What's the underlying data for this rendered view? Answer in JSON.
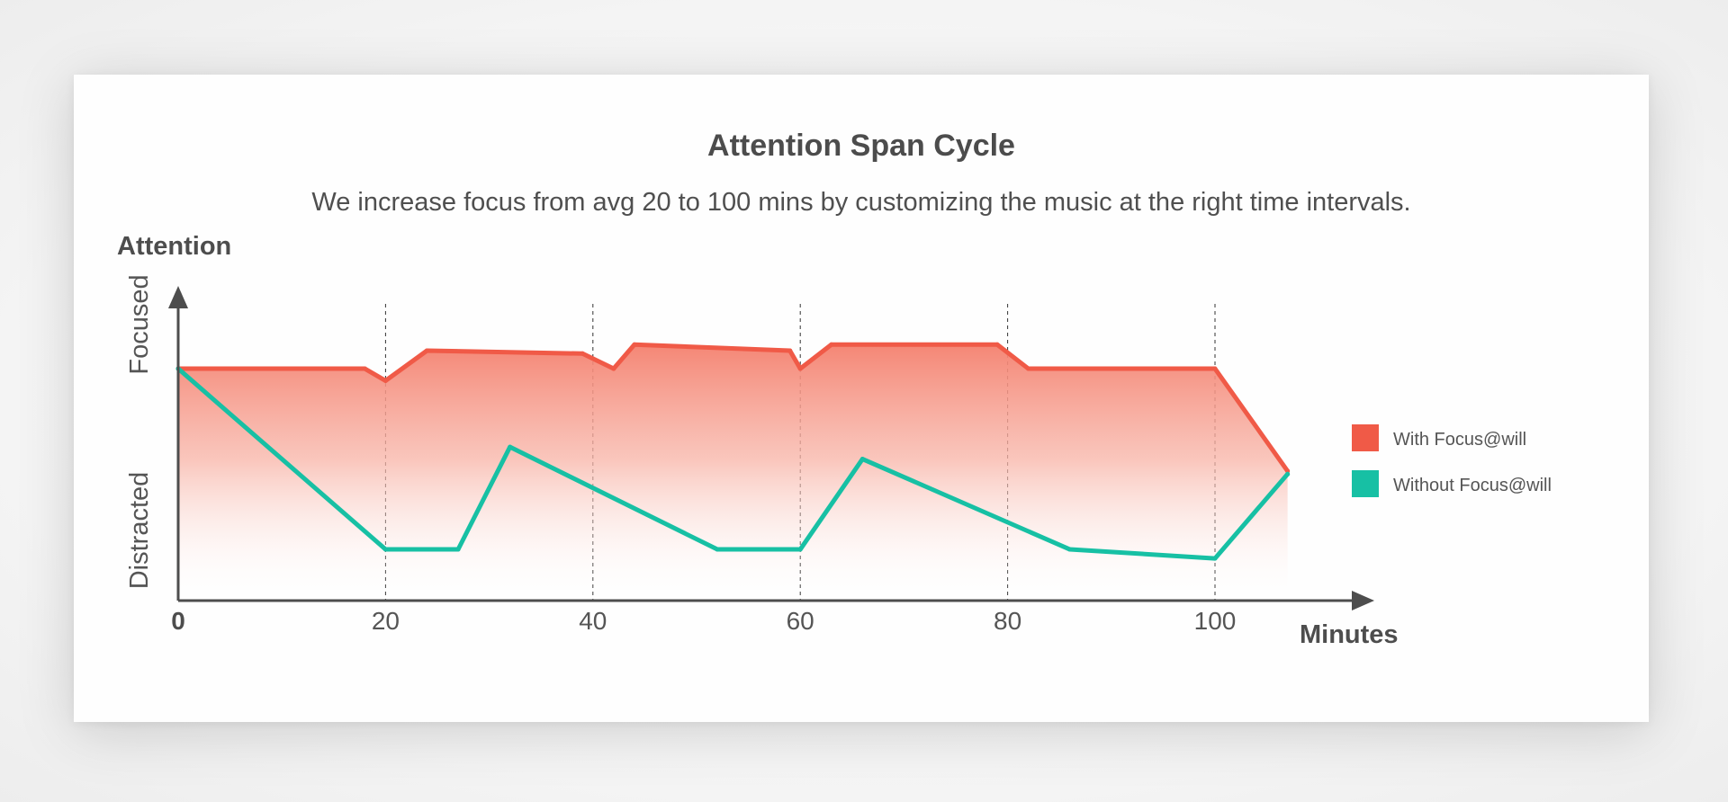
{
  "chart_data": {
    "type": "area",
    "title": "Attention Span Cycle",
    "subtitle": "We increase focus from avg 20 to 100 mins by customizing the music at the right time intervals.",
    "ylabel": "Attention",
    "xlabel": "Minutes",
    "y_categories": [
      "Distracted",
      "Focused"
    ],
    "ylim": [
      0,
      1
    ],
    "xlim": [
      0,
      115
    ],
    "x_ticks": [
      0,
      20,
      40,
      60,
      80,
      100
    ],
    "gridlines_x": [
      20,
      40,
      60,
      80,
      100
    ],
    "legend_position": "right",
    "series": [
      {
        "name": "With Focus@will",
        "color": "#f05a47",
        "fill": "gradient",
        "points": [
          [
            0,
            0.77
          ],
          [
            18,
            0.77
          ],
          [
            20,
            0.73
          ],
          [
            24,
            0.83
          ],
          [
            39,
            0.82
          ],
          [
            42,
            0.77
          ],
          [
            44,
            0.85
          ],
          [
            59,
            0.83
          ],
          [
            60,
            0.77
          ],
          [
            63,
            0.85
          ],
          [
            79,
            0.85
          ],
          [
            82,
            0.77
          ],
          [
            100,
            0.77
          ],
          [
            107,
            0.43
          ]
        ]
      },
      {
        "name": "Without Focus@will",
        "color": "#17c0a4",
        "fill": "none",
        "points": [
          [
            0,
            0.77
          ],
          [
            20,
            0.17
          ],
          [
            27,
            0.17
          ],
          [
            32,
            0.51
          ],
          [
            52,
            0.17
          ],
          [
            60,
            0.17
          ],
          [
            66,
            0.47
          ],
          [
            86,
            0.17
          ],
          [
            100,
            0.14
          ],
          [
            107,
            0.42
          ]
        ]
      }
    ]
  }
}
